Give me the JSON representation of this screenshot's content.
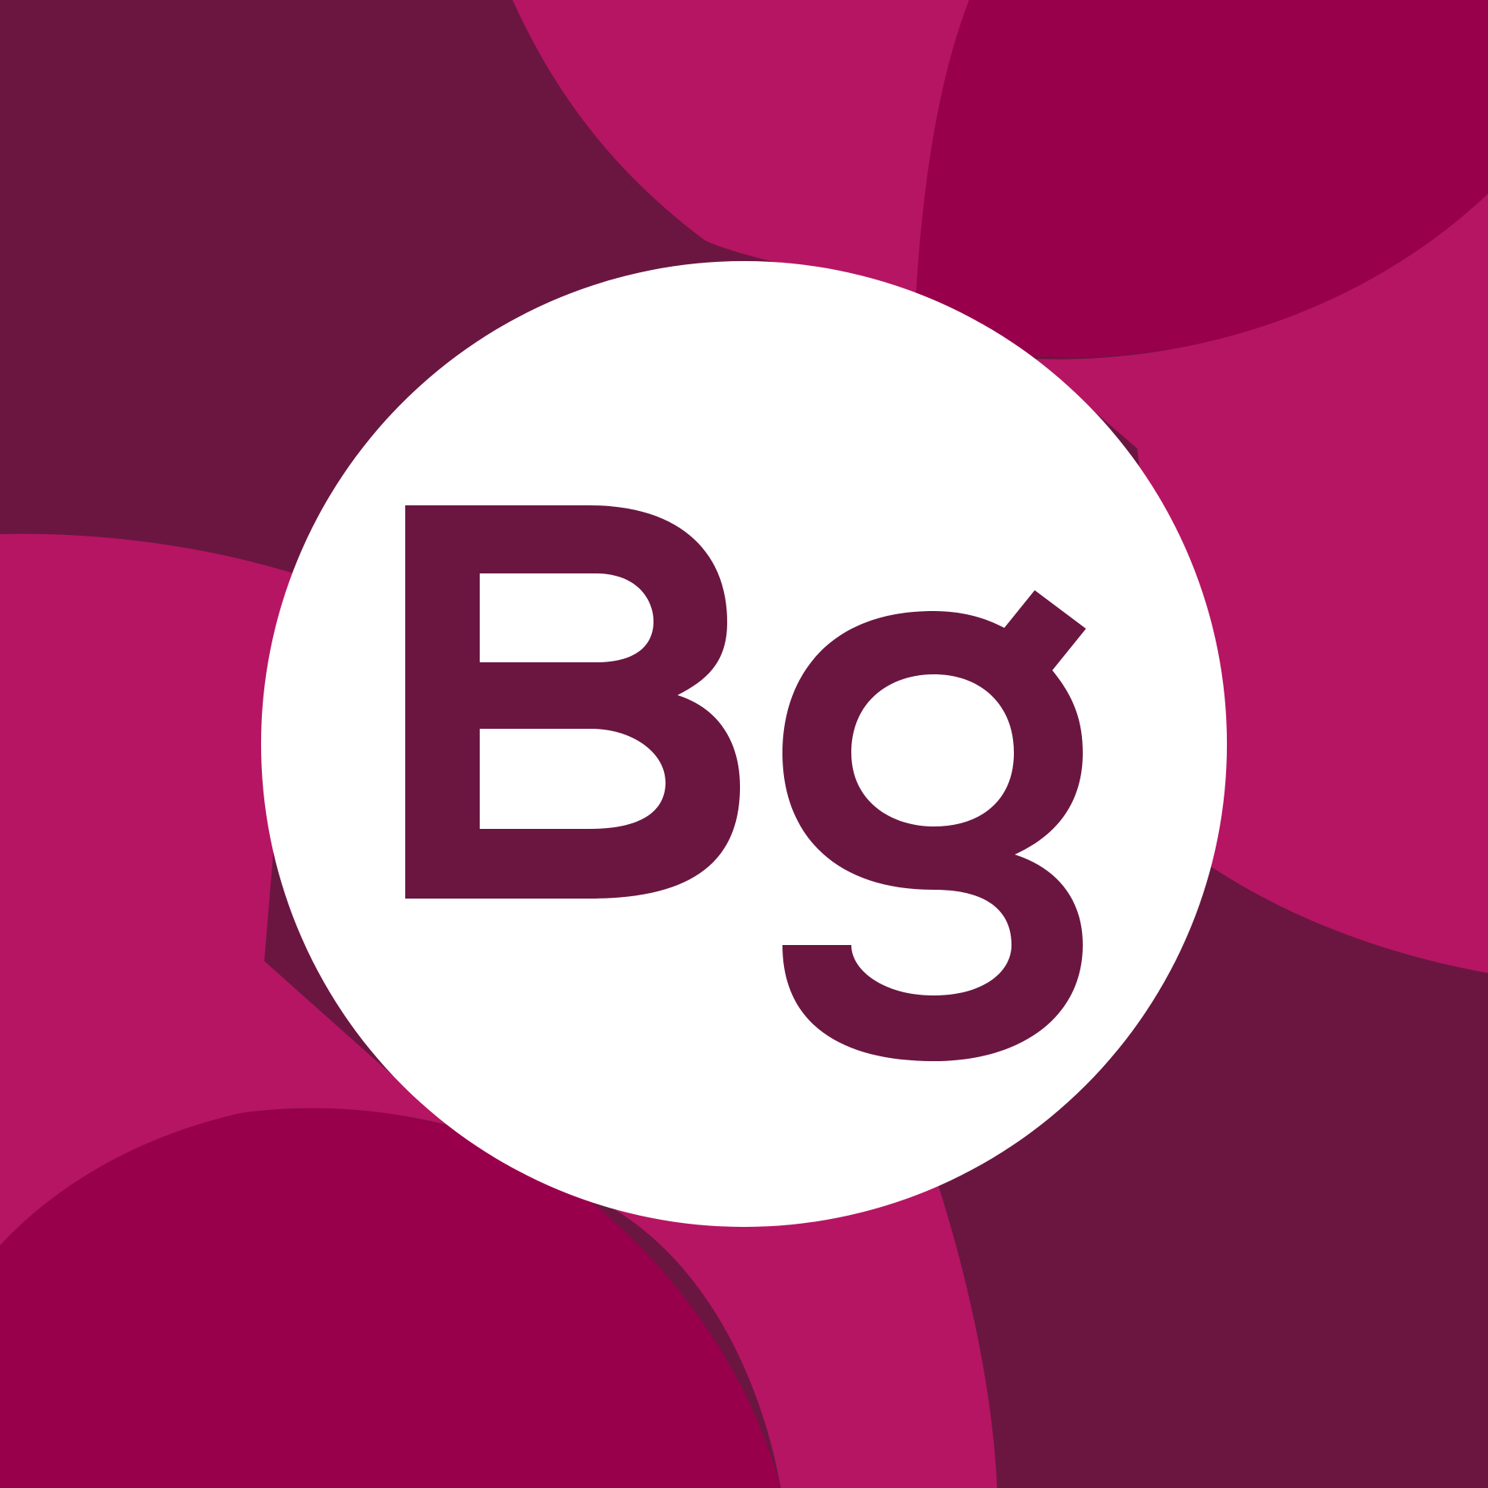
{
  "logo": {
    "text": "Bg",
    "colors": {
      "deep_plum": "#6A1641",
      "magenta": "#B61563",
      "crimson": "#98004C",
      "circle": "#FFFFFF",
      "letters": "#6A1641"
    }
  }
}
